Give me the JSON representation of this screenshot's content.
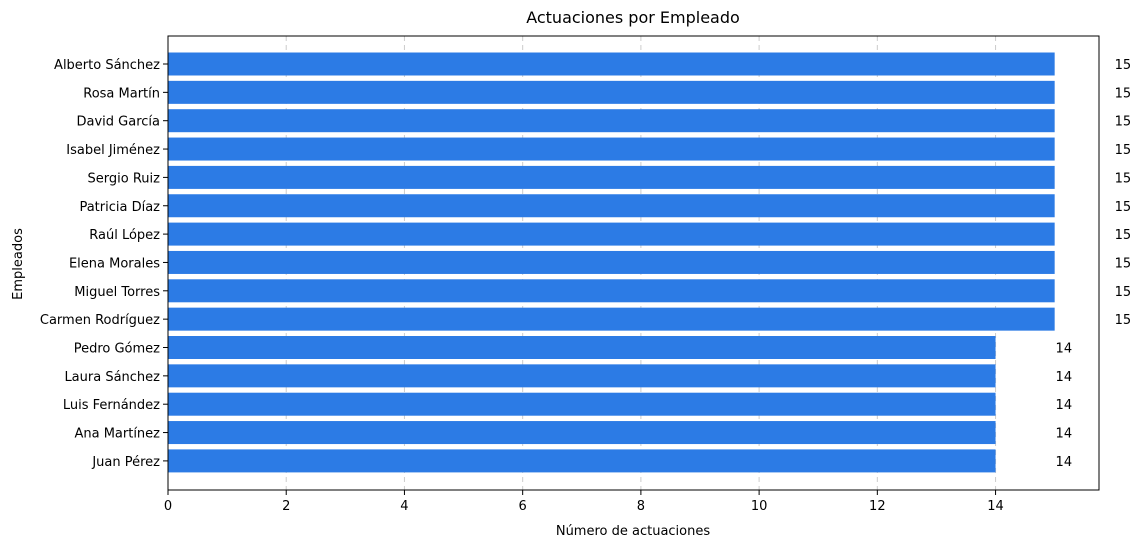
{
  "chart_data": {
    "type": "bar",
    "orientation": "horizontal",
    "title": "Actuaciones por Empleado",
    "xlabel": "Número de actuaciones",
    "ylabel": "Empleados",
    "categories": [
      "Alberto Sánchez",
      "Rosa Martín",
      "David García",
      "Isabel Jiménez",
      "Sergio Ruiz",
      "Patricia Díaz",
      "Raúl López",
      "Elena Morales",
      "Miguel Torres",
      "Carmen Rodríguez",
      "Pedro Gómez",
      "Laura Sánchez",
      "Luis Fernández",
      "Ana Martínez",
      "Juan Pérez"
    ],
    "values": [
      15,
      15,
      15,
      15,
      15,
      15,
      15,
      15,
      15,
      15,
      14,
      14,
      14,
      14,
      14
    ],
    "xlim": [
      0,
      15.75
    ],
    "xticks": [
      0,
      2,
      4,
      6,
      8,
      10,
      12,
      14
    ],
    "bar_color": "#2c7be5",
    "grid": "x-dashed",
    "legend": "none"
  }
}
